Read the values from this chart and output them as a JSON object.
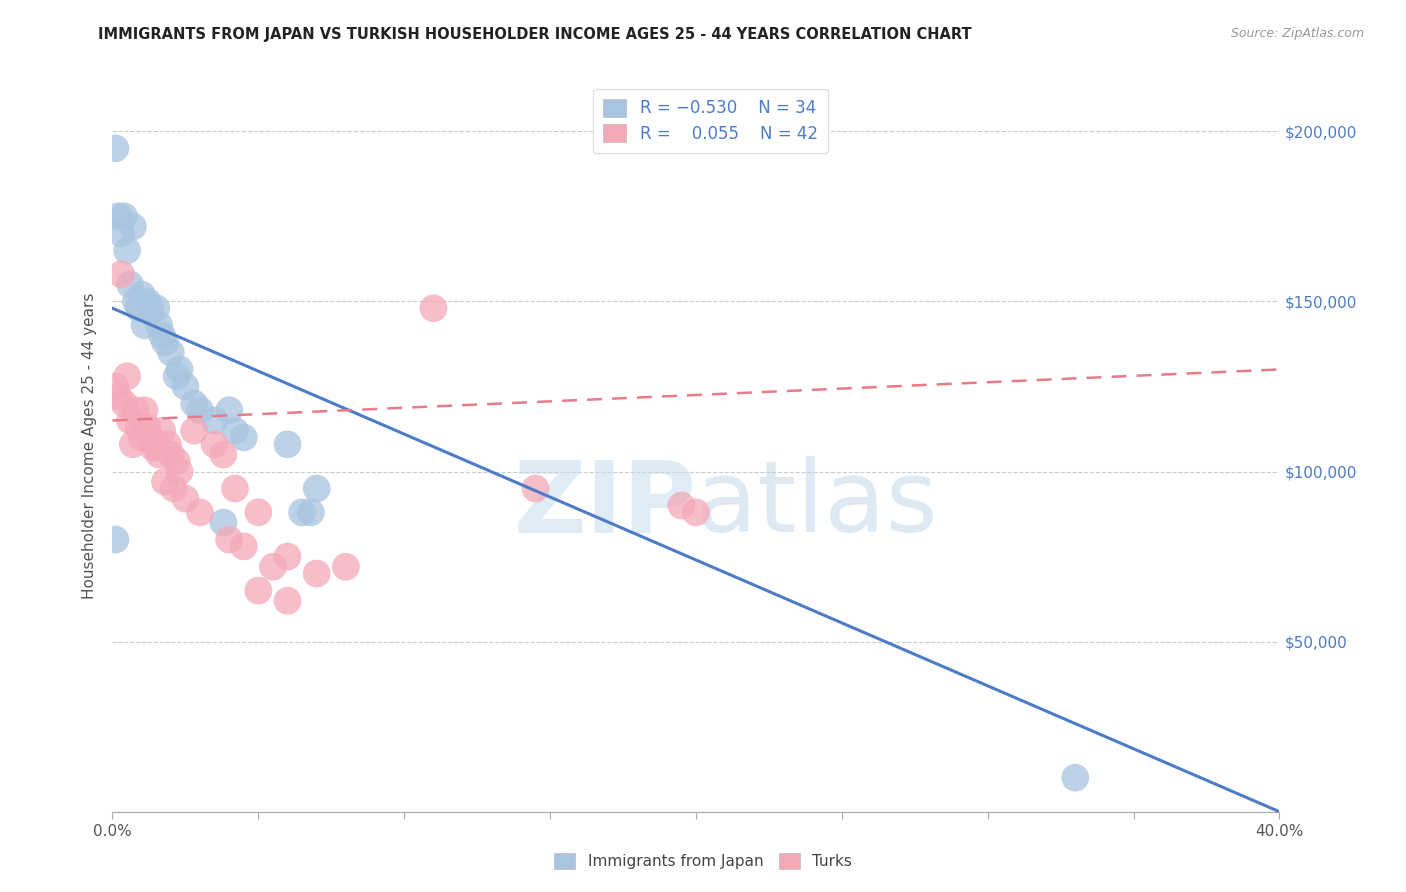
{
  "title": "IMMIGRANTS FROM JAPAN VS TURKISH HOUSEHOLDER INCOME AGES 25 - 44 YEARS CORRELATION CHART",
  "source": "Source: ZipAtlas.com",
  "ylabel": "Householder Income Ages 25 - 44 years",
  "xlim": [
    0.0,
    0.4
  ],
  "ylim": [
    0,
    215000
  ],
  "japan_color": "#a8c4e0",
  "turks_color": "#f4a8b8",
  "japan_line_color": "#4d7cc7",
  "turks_line_color": "#e87a8a",
  "japan_scatter": [
    [
      0.001,
      195000
    ],
    [
      0.002,
      175000
    ],
    [
      0.003,
      170000
    ],
    [
      0.004,
      175000
    ],
    [
      0.005,
      165000
    ],
    [
      0.006,
      155000
    ],
    [
      0.007,
      172000
    ],
    [
      0.008,
      150000
    ],
    [
      0.009,
      148000
    ],
    [
      0.01,
      152000
    ],
    [
      0.011,
      143000
    ],
    [
      0.012,
      150000
    ],
    [
      0.013,
      148000
    ],
    [
      0.015,
      148000
    ],
    [
      0.016,
      143000
    ],
    [
      0.017,
      140000
    ],
    [
      0.018,
      138000
    ],
    [
      0.02,
      135000
    ],
    [
      0.022,
      128000
    ],
    [
      0.023,
      130000
    ],
    [
      0.025,
      125000
    ],
    [
      0.028,
      120000
    ],
    [
      0.03,
      118000
    ],
    [
      0.035,
      115000
    ],
    [
      0.038,
      85000
    ],
    [
      0.04,
      118000
    ],
    [
      0.042,
      112000
    ],
    [
      0.045,
      110000
    ],
    [
      0.06,
      108000
    ],
    [
      0.065,
      88000
    ],
    [
      0.068,
      88000
    ],
    [
      0.07,
      95000
    ],
    [
      0.33,
      10000
    ],
    [
      0.001,
      80000
    ]
  ],
  "turks_scatter": [
    [
      0.001,
      125000
    ],
    [
      0.002,
      122000
    ],
    [
      0.003,
      158000
    ],
    [
      0.004,
      120000
    ],
    [
      0.005,
      128000
    ],
    [
      0.006,
      115000
    ],
    [
      0.007,
      108000
    ],
    [
      0.008,
      118000
    ],
    [
      0.009,
      113000
    ],
    [
      0.01,
      110000
    ],
    [
      0.011,
      118000
    ],
    [
      0.012,
      113000
    ],
    [
      0.013,
      110000
    ],
    [
      0.014,
      107000
    ],
    [
      0.015,
      108000
    ],
    [
      0.016,
      105000
    ],
    [
      0.017,
      112000
    ],
    [
      0.018,
      97000
    ],
    [
      0.019,
      108000
    ],
    [
      0.02,
      105000
    ],
    [
      0.021,
      95000
    ],
    [
      0.022,
      103000
    ],
    [
      0.023,
      100000
    ],
    [
      0.025,
      92000
    ],
    [
      0.028,
      112000
    ],
    [
      0.03,
      88000
    ],
    [
      0.035,
      108000
    ],
    [
      0.038,
      105000
    ],
    [
      0.04,
      80000
    ],
    [
      0.042,
      95000
    ],
    [
      0.045,
      78000
    ],
    [
      0.05,
      88000
    ],
    [
      0.055,
      72000
    ],
    [
      0.06,
      75000
    ],
    [
      0.07,
      70000
    ],
    [
      0.08,
      72000
    ],
    [
      0.11,
      148000
    ],
    [
      0.145,
      95000
    ],
    [
      0.195,
      90000
    ],
    [
      0.2,
      88000
    ],
    [
      0.05,
      65000
    ],
    [
      0.06,
      62000
    ]
  ],
  "japan_trend_x": [
    0.0,
    0.4
  ],
  "japan_trend_y": [
    148000,
    0
  ],
  "turks_trend_x": [
    0.0,
    0.4
  ],
  "turks_trend_y": [
    115000,
    130000
  ],
  "xtick_positions": [
    0.0,
    0.05,
    0.1,
    0.15,
    0.2,
    0.25,
    0.3,
    0.35,
    0.4
  ],
  "ytick_vals": [
    0,
    50000,
    100000,
    150000,
    200000
  ],
  "ytick_labels_right": [
    "",
    "$50,000",
    "$100,000",
    "$150,000",
    "$200,000"
  ]
}
